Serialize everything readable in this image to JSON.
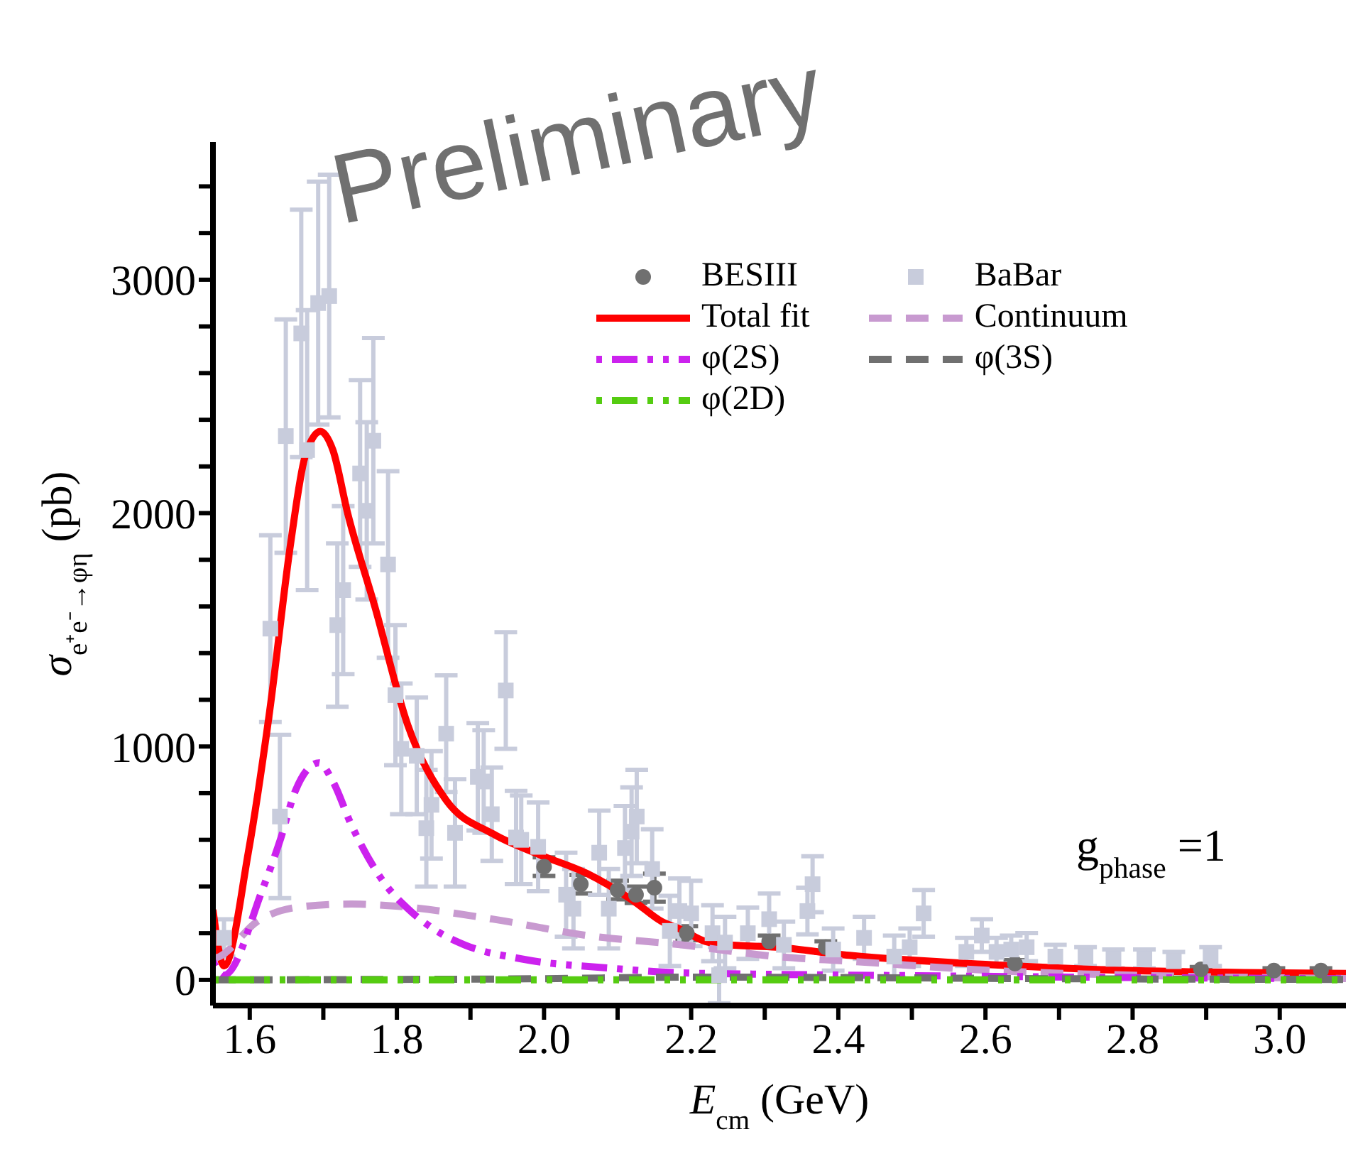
{
  "chart_data": {
    "type": "scatter",
    "xlabel": "E$_{cm}$ (GeV)",
    "ylabel": "σ$_{e⁺e⁻→φη}$ (pb)",
    "annotations": [
      "Preliminary",
      "g$_{phase}$=1"
    ],
    "xlim": [
      1.55,
      3.09
    ],
    "ylim": [
      -110,
      3590
    ],
    "xticks": [
      {
        "value": 1.6,
        "label": "1.6"
      },
      {
        "value": 1.7,
        "label": null
      },
      {
        "value": 1.8,
        "label": "1.8"
      },
      {
        "value": 1.9,
        "label": null
      },
      {
        "value": 2.0,
        "label": "2.0"
      },
      {
        "value": 2.1,
        "label": null
      },
      {
        "value": 2.2,
        "label": "2.2"
      },
      {
        "value": 2.3,
        "label": null
      },
      {
        "value": 2.4,
        "label": "2.4"
      },
      {
        "value": 2.5,
        "label": null
      },
      {
        "value": 2.6,
        "label": "2.6"
      },
      {
        "value": 2.7,
        "label": null
      },
      {
        "value": 2.8,
        "label": "2.8"
      },
      {
        "value": 2.9,
        "label": null
      },
      {
        "value": 3.0,
        "label": "3.0"
      }
    ],
    "yticks": [
      0,
      {
        "value": 200,
        "label": null
      },
      {
        "value": 400,
        "label": null
      },
      {
        "value": 600,
        "label": null
      },
      {
        "value": 800,
        "label": null
      },
      1000,
      {
        "value": 1200,
        "label": null
      },
      {
        "value": 1400,
        "label": null
      },
      {
        "value": 1600,
        "label": null
      },
      {
        "value": 1800,
        "label": null
      },
      2000,
      {
        "value": 2200,
        "label": null
      },
      {
        "value": 2400,
        "label": null
      },
      {
        "value": 2600,
        "label": null
      },
      {
        "value": 2800,
        "label": null
      },
      3000,
      {
        "value": 3200,
        "label": null
      },
      {
        "value": 3400,
        "label": null
      }
    ],
    "grid": false,
    "legend": "top right",
    "series": [
      {
        "name": "BESIII",
        "marker": "circle",
        "color": "#707070",
        "x": [
          2.0,
          2.05,
          2.1,
          2.125,
          2.15,
          2.194,
          2.306,
          2.383,
          2.64,
          2.893,
          2.992,
          3.056
        ],
        "values": [
          485,
          410,
          385,
          365,
          395,
          200,
          165,
          140,
          70,
          45,
          40,
          40
        ],
        "errors": [
          40,
          40,
          40,
          35,
          60,
          30,
          25,
          25,
          15,
          10,
          10,
          10
        ]
      },
      {
        "name": "BaBar",
        "marker": "square",
        "color": "#c8ccdc",
        "x": [
          1.565,
          1.628,
          1.641,
          1.649,
          1.67,
          1.678,
          1.693,
          1.708,
          1.719,
          1.727,
          1.75,
          1.759,
          1.768,
          1.788,
          1.798,
          1.806,
          1.827,
          1.84,
          1.847,
          1.867,
          1.879,
          1.91,
          1.918,
          1.929,
          1.948,
          1.962,
          1.969,
          1.992,
          2.03,
          2.04,
          2.075,
          2.088,
          2.11,
          2.119,
          2.126,
          2.147,
          2.171,
          2.184,
          2.2,
          2.229,
          2.238,
          2.246,
          2.277,
          2.306,
          2.326,
          2.358,
          2.365,
          2.393,
          2.435,
          2.476,
          2.497,
          2.516,
          2.574,
          2.595,
          2.615,
          2.635,
          2.656,
          2.695,
          2.736,
          2.774,
          2.816,
          2.856,
          2.906
        ],
        "values": [
          180,
          1505,
          700,
          2330,
          2770,
          2270,
          2900,
          2930,
          1520,
          1670,
          2170,
          2010,
          2310,
          1780,
          1220,
          990,
          960,
          650,
          750,
          1055,
          630,
          870,
          850,
          710,
          1240,
          610,
          600,
          570,
          365,
          305,
          545,
          305,
          565,
          635,
          700,
          475,
          210,
          295,
          285,
          200,
          20,
          160,
          200,
          260,
          150,
          295,
          410,
          130,
          180,
          100,
          140,
          285,
          120,
          190,
          120,
          130,
          140,
          100,
          100,
          90,
          90,
          80,
          100
        ],
        "errors": [
          80,
          400,
          350,
          500,
          530,
          600,
          520,
          520,
          350,
          360,
          400,
          380,
          440,
          400,
          300,
          280,
          250,
          250,
          230,
          250,
          230,
          230,
          220,
          200,
          250,
          200,
          190,
          190,
          180,
          170,
          180,
          170,
          180,
          190,
          200,
          170,
          150,
          140,
          140,
          120,
          120,
          110,
          110,
          110,
          100,
          100,
          120,
          90,
          90,
          90,
          80,
          100,
          60,
          70,
          60,
          60,
          60,
          50,
          40,
          40,
          40,
          40,
          40
        ]
      },
      {
        "name": "Total fit",
        "type": "line",
        "color": "#ff0000",
        "line_style": "solid",
        "x": [
          1.55,
          1.565,
          1.598,
          1.627,
          1.656,
          1.675,
          1.696,
          1.713,
          1.733,
          1.77,
          1.815,
          1.867,
          1.931,
          1.995,
          2.059,
          2.123,
          2.16,
          2.187,
          2.219,
          2.251,
          2.315,
          2.415,
          2.608,
          2.8,
          3.09
        ],
        "values": [
          300,
          60,
          545,
          1150,
          1880,
          2240,
          2350,
          2270,
          2000,
          1600,
          1090,
          770,
          625,
          535,
          455,
          335,
          250,
          215,
          165,
          150,
          140,
          105,
          65,
          40,
          28
        ]
      },
      {
        "name": "Continuum",
        "type": "line",
        "color": "#c89ad0",
        "line_style": "dashed",
        "x": [
          1.55,
          1.559,
          1.61,
          1.674,
          1.738,
          1.802,
          1.931,
          2.059,
          2.187,
          2.315,
          2.415,
          2.608,
          2.8,
          3.09
        ],
        "values": [
          90,
          100,
          250,
          315,
          325,
          315,
          260,
          190,
          150,
          100,
          80,
          40,
          20,
          6
        ]
      },
      {
        "name": "φ(2S)",
        "type": "line",
        "color": "#cc22ee",
        "line_style": "dashdot",
        "x": [
          1.55,
          1.565,
          1.617,
          1.642,
          1.662,
          1.694,
          1.713,
          1.738,
          1.783,
          1.815,
          1.854,
          1.892,
          1.969,
          2.091,
          2.187,
          2.283,
          2.5,
          2.8,
          3.09
        ],
        "values": [
          80,
          20,
          385,
          605,
          810,
          930,
          850,
          665,
          415,
          305,
          210,
          150,
          90,
          50,
          30,
          25,
          18,
          10,
          5
        ]
      },
      {
        "name": "φ(3S)",
        "type": "line",
        "color": "#707070",
        "line_style": "dashed",
        "x": [
          1.55,
          1.8,
          2.0,
          2.2,
          2.4,
          2.7,
          3.09
        ],
        "values": [
          0,
          2,
          5,
          12,
          10,
          5,
          2
        ]
      },
      {
        "name": "φ(2D)",
        "type": "line",
        "color": "#55cc11",
        "line_style": "dashdot",
        "x": [
          1.55,
          2.0,
          2.5,
          3.09
        ],
        "values": [
          0,
          0,
          0,
          0
        ]
      }
    ]
  }
}
